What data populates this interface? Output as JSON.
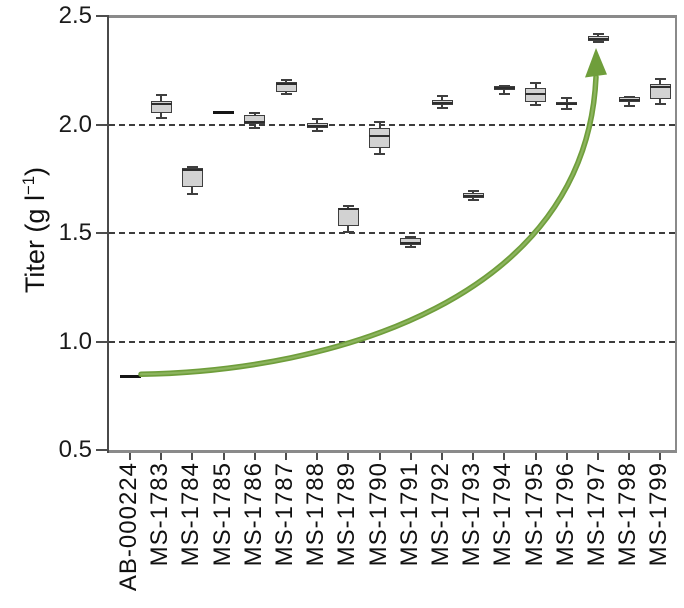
{
  "figure": {
    "background": "#ffffff"
  },
  "axis": {
    "y_title_prefix": "Titer (g l",
    "y_title_sup": "−1",
    "y_title_suffix": ")"
  },
  "chart_data": {
    "type": "boxplot",
    "ylabel": "Titer (g l^-1)",
    "ylim": [
      0.5,
      2.5
    ],
    "y_ticks": [
      {
        "label": "2.5",
        "value": 2.5
      },
      {
        "label": "2.0",
        "value": 2.0
      },
      {
        "label": "1.5",
        "value": 1.5
      },
      {
        "label": "1.0",
        "value": 1.0
      },
      {
        "label": "0.5",
        "value": 0.5
      }
    ],
    "gridlines": [
      2.0,
      1.5,
      1.0
    ],
    "grid_style": "dashed",
    "categories": [
      "AB-000224",
      "MS-1783",
      "MS-1784",
      "MS-1785",
      "MS-1786",
      "MS-1787",
      "MS-1788",
      "MS-1789",
      "MS-1790",
      "MS-1791",
      "MS-1792",
      "MS-1793",
      "MS-1794",
      "MS-1795",
      "MS-1796",
      "MS-1797",
      "MS-1798",
      "MS-1799"
    ],
    "boxes": [
      {
        "label": "AB-000224",
        "type": "line",
        "value": 0.84
      },
      {
        "label": "MS-1783",
        "type": "box",
        "whisker_low": 2.03,
        "q1": 2.055,
        "median": 2.095,
        "q3": 2.11,
        "whisker_high": 2.135
      },
      {
        "label": "MS-1784",
        "type": "box",
        "whisker_low": 1.68,
        "q1": 1.71,
        "median": 1.79,
        "q3": 1.8,
        "whisker_high": 1.805
      },
      {
        "label": "MS-1785",
        "type": "line",
        "value": 2.055
      },
      {
        "label": "MS-1786",
        "type": "box",
        "whisker_low": 1.985,
        "q1": 2.0,
        "median": 2.01,
        "q3": 2.045,
        "whisker_high": 2.055
      },
      {
        "label": "MS-1787",
        "type": "box",
        "whisker_low": 2.14,
        "q1": 2.15,
        "median": 2.185,
        "q3": 2.195,
        "whisker_high": 2.205
      },
      {
        "label": "MS-1788",
        "type": "box",
        "whisker_low": 1.97,
        "q1": 1.985,
        "median": 1.995,
        "q3": 2.005,
        "whisker_high": 2.025
      },
      {
        "label": "MS-1789",
        "type": "box",
        "whisker_low": 1.505,
        "q1": 1.53,
        "median": 1.61,
        "q3": 1.615,
        "whisker_high": 1.625
      },
      {
        "label": "MS-1790",
        "type": "box",
        "whisker_low": 1.865,
        "q1": 1.89,
        "median": 1.945,
        "q3": 1.985,
        "whisker_high": 2.01
      },
      {
        "label": "MS-1791",
        "type": "box",
        "whisker_low": 1.435,
        "q1": 1.445,
        "median": 1.452,
        "q3": 1.475,
        "whisker_high": 1.48
      },
      {
        "label": "MS-1792",
        "type": "box",
        "whisker_low": 2.075,
        "q1": 2.09,
        "median": 2.1,
        "q3": 2.115,
        "whisker_high": 2.13
      },
      {
        "label": "MS-1793",
        "type": "box",
        "whisker_low": 1.65,
        "q1": 1.66,
        "median": 1.67,
        "q3": 1.685,
        "whisker_high": 1.695
      },
      {
        "label": "MS-1794",
        "type": "box",
        "whisker_low": 2.14,
        "q1": 2.157,
        "median": 2.168,
        "q3": 2.178,
        "whisker_high": 2.178
      },
      {
        "label": "MS-1795",
        "type": "box",
        "whisker_low": 2.09,
        "q1": 2.105,
        "median": 2.14,
        "q3": 2.17,
        "whisker_high": 2.19
      },
      {
        "label": "MS-1796",
        "type": "box",
        "whisker_low": 2.072,
        "q1": 2.089,
        "median": 2.096,
        "q3": 2.105,
        "whisker_high": 2.122
      },
      {
        "label": "MS-1797",
        "type": "box",
        "whisker_low": 2.378,
        "q1": 2.385,
        "median": 2.396,
        "q3": 2.41,
        "whisker_high": 2.415
      },
      {
        "label": "MS-1798",
        "type": "box",
        "whisker_low": 2.085,
        "q1": 2.105,
        "median": 2.115,
        "q3": 2.126,
        "whisker_high": 2.126
      },
      {
        "label": "MS-1799",
        "type": "box",
        "whisker_low": 2.096,
        "q1": 2.116,
        "median": 2.172,
        "q3": 2.188,
        "whisker_high": 2.208
      }
    ],
    "annotation": {
      "type": "curved-arrow",
      "meaning": "titer improvement from parent strain to best strain",
      "from_label": "AB-000224",
      "from_value": 0.84,
      "to_label": "MS-1797",
      "to_value": 2.38,
      "color": "#6f9e3b",
      "highlight": "#8cb45e"
    },
    "colors": {
      "box_fill": "#d2d2d2",
      "box_border": "#3f3f3f",
      "median": "#2e2e2e",
      "spine": "#8a8a8a",
      "axis_line": "#4a4a4a",
      "grid": "#3d3d3d",
      "text": "#1a1a1a",
      "arrow_green": "#6f9e3b"
    },
    "legend": null,
    "title": ""
  }
}
